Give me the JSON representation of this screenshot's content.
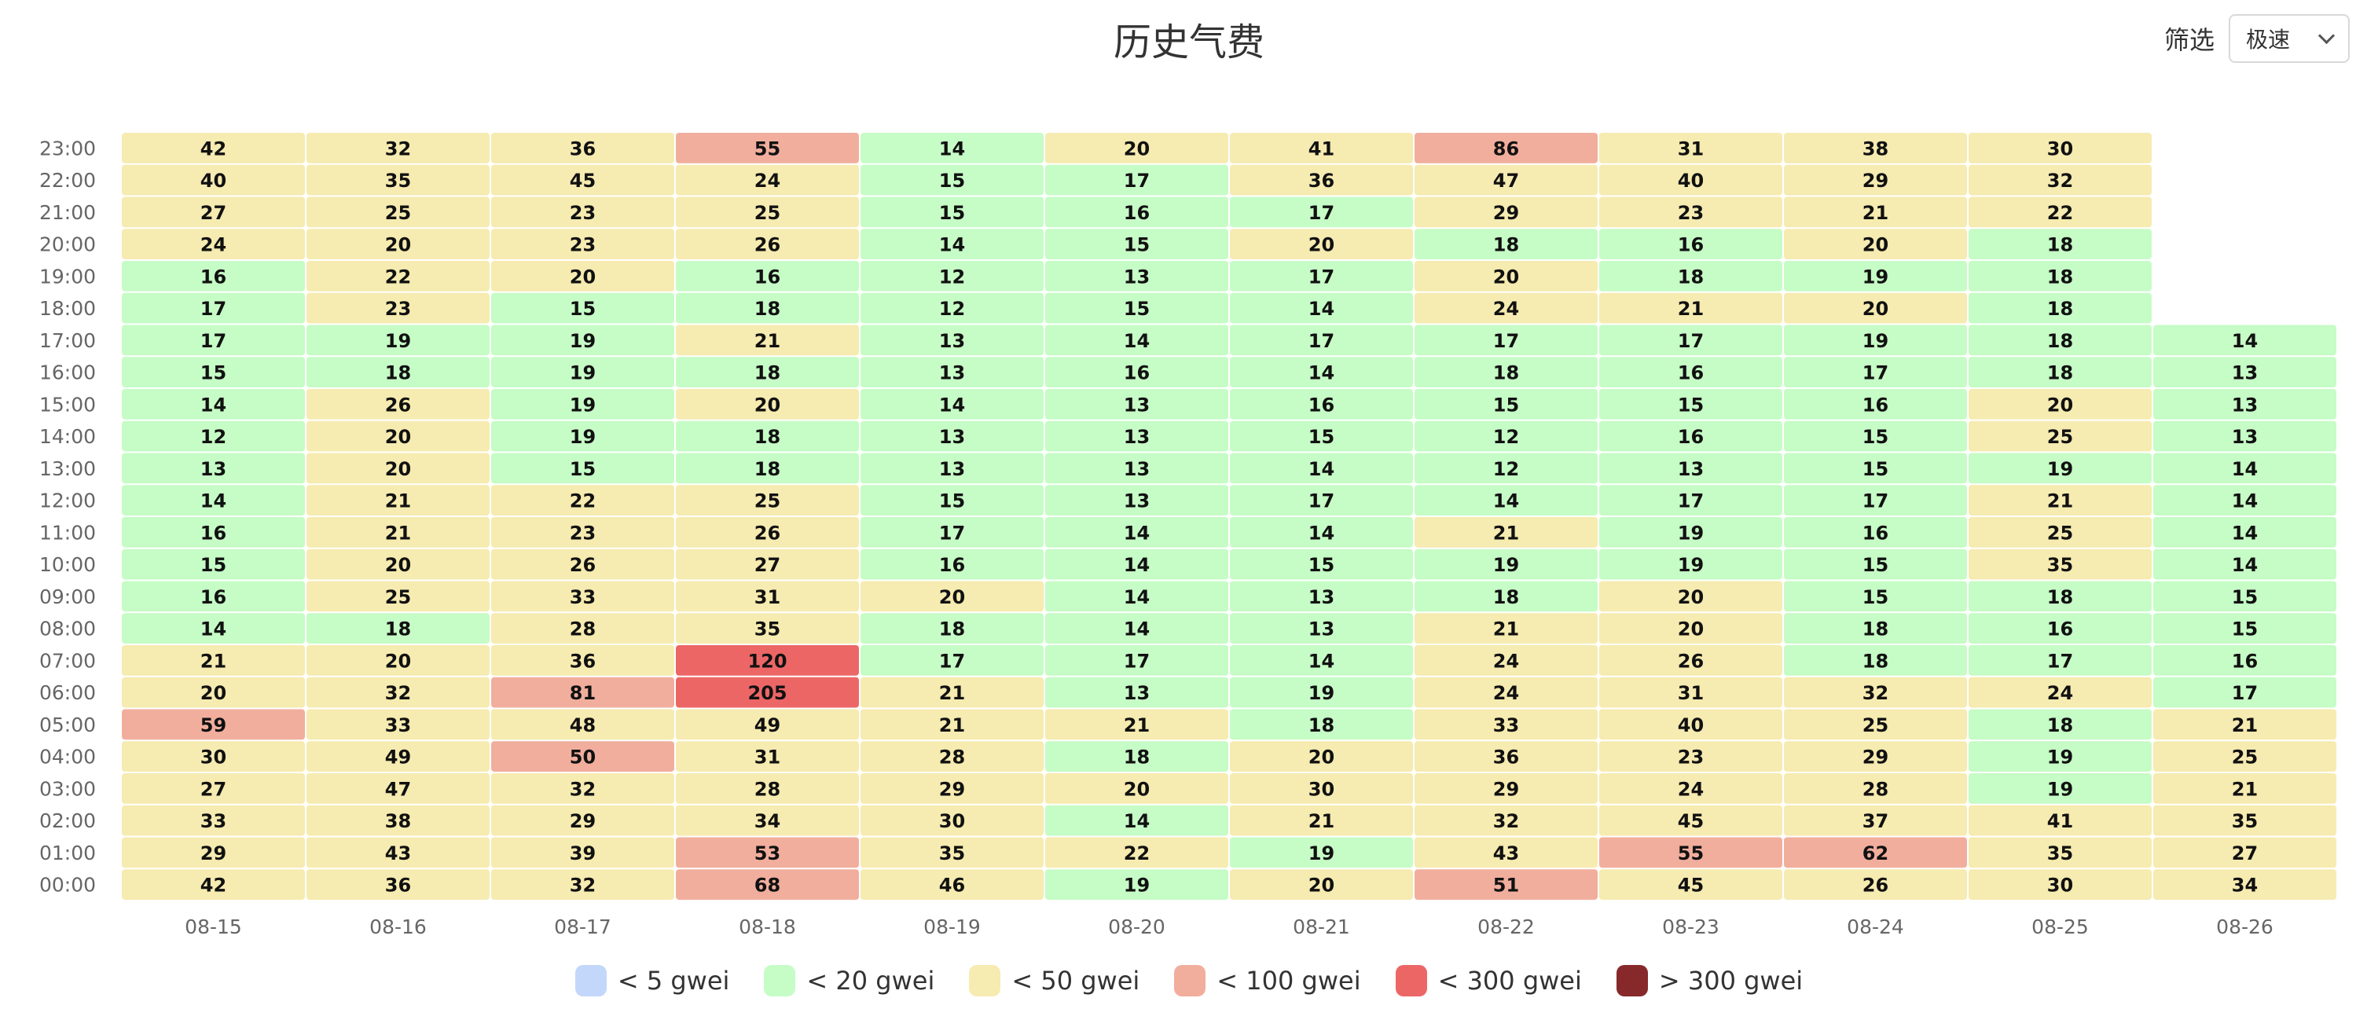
{
  "header": {
    "title": "历史气费"
  },
  "filter": {
    "label": "筛选",
    "value": "极速"
  },
  "chart_data": {
    "type": "heatmap",
    "title": "历史气费",
    "x": [
      "08-15",
      "08-16",
      "08-17",
      "08-18",
      "08-19",
      "08-20",
      "08-21",
      "08-22",
      "08-23",
      "08-24",
      "08-25",
      "08-26"
    ],
    "y": [
      "00:00",
      "01:00",
      "02:00",
      "03:00",
      "04:00",
      "05:00",
      "06:00",
      "07:00",
      "08:00",
      "09:00",
      "10:00",
      "11:00",
      "12:00",
      "13:00",
      "14:00",
      "15:00",
      "16:00",
      "17:00",
      "18:00",
      "19:00",
      "20:00",
      "21:00",
      "22:00",
      "23:00"
    ],
    "values": [
      [
        42,
        29,
        33,
        27,
        30,
        59,
        20,
        21,
        14,
        16,
        15,
        16,
        14,
        13,
        12,
        14,
        15,
        17,
        17,
        16,
        24,
        27,
        40,
        42
      ],
      [
        36,
        43,
        38,
        47,
        49,
        33,
        32,
        20,
        18,
        25,
        20,
        21,
        21,
        20,
        20,
        26,
        18,
        19,
        23,
        22,
        20,
        25,
        35,
        32
      ],
      [
        32,
        39,
        29,
        32,
        50,
        48,
        81,
        36,
        28,
        33,
        26,
        23,
        22,
        15,
        19,
        19,
        19,
        19,
        15,
        20,
        23,
        23,
        45,
        36
      ],
      [
        68,
        53,
        34,
        28,
        31,
        49,
        205,
        120,
        35,
        31,
        27,
        26,
        25,
        18,
        18,
        20,
        18,
        21,
        18,
        16,
        26,
        25,
        24,
        55
      ],
      [
        46,
        35,
        30,
        29,
        28,
        21,
        21,
        17,
        18,
        20,
        16,
        17,
        15,
        13,
        13,
        14,
        13,
        13,
        12,
        12,
        14,
        15,
        15,
        14
      ],
      [
        19,
        22,
        14,
        20,
        18,
        21,
        13,
        17,
        14,
        14,
        14,
        14,
        13,
        13,
        13,
        13,
        16,
        14,
        15,
        13,
        15,
        16,
        17,
        20
      ],
      [
        20,
        19,
        21,
        30,
        20,
        18,
        19,
        14,
        13,
        13,
        15,
        14,
        17,
        14,
        15,
        16,
        14,
        17,
        14,
        17,
        20,
        17,
        36,
        41
      ],
      [
        51,
        43,
        32,
        29,
        36,
        33,
        24,
        24,
        21,
        18,
        19,
        21,
        14,
        12,
        12,
        15,
        18,
        17,
        24,
        20,
        18,
        29,
        47,
        86
      ],
      [
        45,
        55,
        45,
        24,
        23,
        40,
        31,
        26,
        20,
        20,
        19,
        19,
        17,
        13,
        16,
        15,
        16,
        17,
        21,
        18,
        16,
        23,
        40,
        31
      ],
      [
        26,
        62,
        37,
        28,
        29,
        25,
        32,
        18,
        18,
        15,
        15,
        16,
        17,
        15,
        15,
        16,
        17,
        19,
        20,
        19,
        20,
        21,
        29,
        38
      ],
      [
        30,
        35,
        41,
        19,
        19,
        18,
        24,
        17,
        16,
        18,
        35,
        25,
        21,
        19,
        25,
        20,
        18,
        18,
        18,
        18,
        18,
        22,
        32,
        30
      ],
      [
        34,
        27,
        35,
        21,
        25,
        21,
        17,
        16,
        15,
        15,
        14,
        14,
        14,
        14,
        13,
        13,
        13,
        14,
        null,
        null,
        null,
        null,
        null,
        null
      ]
    ],
    "legend": [
      {
        "label": "< 5 gwei",
        "color": "#c3d7fb",
        "max": 5
      },
      {
        "label": "< 20 gwei",
        "color": "#c6fcc6",
        "max": 20
      },
      {
        "label": "< 50 gwei",
        "color": "#f6ebb0",
        "max": 50
      },
      {
        "label": "< 100 gwei",
        "color": "#f1ae9d",
        "max": 100
      },
      {
        "label": "< 300 gwei",
        "color": "#ed6666",
        "max": 300
      },
      {
        "label": "> 300 gwei",
        "color": "#87292b",
        "max": null
      }
    ],
    "legend_position": "bottom-center",
    "grid": false
  }
}
